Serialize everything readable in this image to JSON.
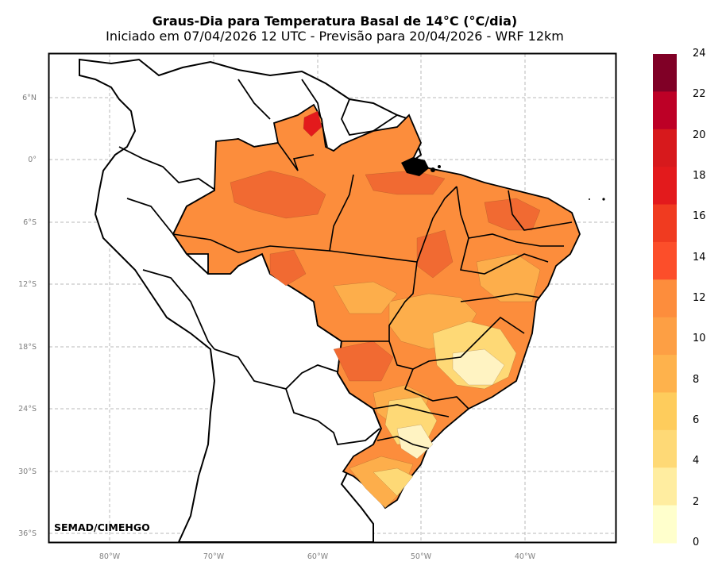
{
  "title": "Graus-Dia para Temperatura Basal de 14°C (°C/dia)",
  "subtitle": "Iniciado em 07/04/2026 12 UTC - Previsão para 20/04/2026 - WRF 12km",
  "credit": "SEMAD/CIMEHGO",
  "lon_ticks": [
    "80°W",
    "70°W",
    "60°W",
    "50°W",
    "40°W"
  ],
  "lat_ticks": [
    "6°N",
    "0°",
    "6°S",
    "12°S",
    "18°S",
    "24°S",
    "30°S",
    "36°S"
  ],
  "colorbar": {
    "labels": [
      "24",
      "22",
      "20",
      "18",
      "16",
      "14",
      "12",
      "10",
      "8",
      "6",
      "4",
      "2",
      "0"
    ],
    "colors": [
      "#800026",
      "#bd0026",
      "#d7191c",
      "#e31a1c",
      "#f03b20",
      "#fc4e2a",
      "#fd8d3c",
      "#fd9f44",
      "#feb24c",
      "#fecc5c",
      "#fed976",
      "#ffeda0",
      "#ffffcc"
    ]
  },
  "legend_levels": {
    "brazil_base": "#fc8d3c",
    "north_hot": "#f16a32",
    "roraima_peak": "#e31a1c",
    "cerrado_mid": "#fdae4b",
    "southeast_low": "#fed976",
    "south_lowest": "#fff3c2"
  }
}
